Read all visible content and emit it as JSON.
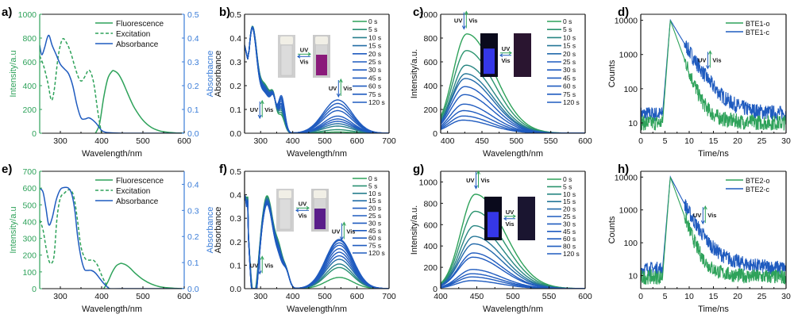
{
  "colors": {
    "green": "#2ea25a",
    "blue": "#1f5bbf",
    "axis_green": "#2ea25a",
    "axis_blue": "#3b7dd8",
    "black": "#111111"
  },
  "chart_data": [
    {
      "id": "a",
      "panel_label": "a)",
      "type": "line",
      "dual_axis": true,
      "xlabel": "Wavelength/nm",
      "ylabel": "Intensity/a.u",
      "y2label": "Absorbacne",
      "xlim": [
        250,
        600
      ],
      "ylim": [
        0,
        1000
      ],
      "y2lim": [
        0,
        0.5
      ],
      "xticks": [
        300,
        400,
        500,
        600
      ],
      "yticks": [
        0,
        200,
        400,
        600,
        800,
        1000
      ],
      "y2ticks": [
        0.0,
        0.1,
        0.2,
        0.3,
        0.4,
        0.5
      ],
      "y2tick_labels": [
        "0.0",
        "0.1",
        "0.2",
        "0.3",
        "0.4",
        "0.5"
      ],
      "legend": [
        "Fluorescence",
        "Excitation",
        "Absorbance"
      ],
      "series": [
        {
          "name": "Fluorescence",
          "axis": "left",
          "style": "solid",
          "color": "green",
          "x": [
            385,
            395,
            405,
            415,
            425,
            430,
            440,
            450,
            460,
            470,
            480,
            500,
            520,
            540,
            560,
            580,
            600
          ],
          "y": [
            0,
            80,
            300,
            460,
            520,
            525,
            500,
            440,
            360,
            280,
            210,
            110,
            50,
            20,
            8,
            3,
            1
          ]
        },
        {
          "name": "Excitation",
          "axis": "left",
          "style": "dashed",
          "color": "green",
          "x": [
            250,
            260,
            270,
            278,
            285,
            295,
            305,
            315,
            325,
            335,
            345,
            352,
            360,
            368,
            375,
            382,
            390,
            397,
            400
          ],
          "y": [
            650,
            560,
            420,
            280,
            360,
            650,
            790,
            760,
            680,
            560,
            460,
            440,
            480,
            530,
            500,
            400,
            200,
            50,
            0
          ]
        },
        {
          "name": "Absorbance",
          "axis": "right",
          "style": "solid",
          "color": "blue",
          "x": [
            250,
            255,
            262,
            268,
            273,
            280,
            290,
            300,
            310,
            320,
            330,
            340,
            350,
            360,
            368,
            375,
            385,
            392,
            400,
            410,
            420,
            450,
            500,
            600
          ],
          "y": [
            0.37,
            0.33,
            0.36,
            0.4,
            0.41,
            0.37,
            0.33,
            0.29,
            0.27,
            0.25,
            0.2,
            0.12,
            0.065,
            0.06,
            0.065,
            0.06,
            0.045,
            0.03,
            0.012,
            0.004,
            0.002,
            0.0,
            0.0,
            0.0
          ]
        }
      ]
    },
    {
      "id": "b",
      "panel_label": "b)",
      "type": "line",
      "xlabel": "Wavelength/nm",
      "ylabel": "Absorbance",
      "xlim": [
        250,
        700
      ],
      "ylim": [
        0,
        0.5
      ],
      "xticks": [
        300,
        400,
        500,
        600,
        700
      ],
      "yticks": [
        0.0,
        0.1,
        0.2,
        0.3,
        0.4,
        0.5
      ],
      "ytick_labels": [
        "0.0",
        "0.1",
        "0.2",
        "0.3",
        "0.4",
        "0.5"
      ],
      "series_kind": "time_absorbance_uv",
      "legend": [
        "0 s",
        "5 s",
        "10 s",
        "15 s",
        "20 s",
        "25 s",
        "30 s",
        "45 s",
        "60 s",
        "75 s",
        "120 s"
      ],
      "visible_band_peak_nm": 540,
      "visible_band_peaks": [
        0.005,
        0.015,
        0.03,
        0.04,
        0.05,
        0.06,
        0.072,
        0.095,
        0.11,
        0.125,
        0.14
      ],
      "uv_peak_365": [
        0.065,
        0.075,
        0.085,
        0.093,
        0.1,
        0.108,
        0.115,
        0.125,
        0.133,
        0.14,
        0.148
      ],
      "uv_shoulder_310": [
        0.28,
        0.275,
        0.27,
        0.265,
        0.26,
        0.255,
        0.25,
        0.245,
        0.24,
        0.235,
        0.23
      ],
      "uv_peak_273": [
        0.405,
        0.405,
        0.405,
        0.405,
        0.405,
        0.405,
        0.405,
        0.405,
        0.405,
        0.405,
        0.405
      ],
      "annotations": [
        {
          "text_left": "UV",
          "text_right": "Vis",
          "at_x": 300,
          "at_y": 0.1
        },
        {
          "text_left": "UV",
          "text_right": "Vis",
          "at_x": 545,
          "at_y": 0.19
        }
      ],
      "inset": {
        "left_vial": "colorless",
        "right_vial": "purple",
        "arrow_top": "UV",
        "arrow_bottom": "Vis",
        "right_color": "#8a1a7a"
      }
    },
    {
      "id": "c",
      "panel_label": "c)",
      "type": "line",
      "xlabel": "Wavelength/nm",
      "ylabel": "Intensity/a.u.",
      "xlim": [
        390,
        600
      ],
      "ylim": [
        0,
        1000
      ],
      "xticks": [
        400,
        450,
        500,
        550,
        600
      ],
      "yticks": [
        0,
        200,
        400,
        600,
        800,
        1000
      ],
      "series_kind": "time_emission",
      "emission_peak_nm": 428,
      "legend": [
        "0 s",
        "5 s",
        "10 s",
        "15 s",
        "20 s",
        "25 s",
        "30 s",
        "45 s",
        "60 s",
        "75 s",
        "120 s"
      ],
      "peaks": [
        835,
        695,
        572,
        500,
        460,
        392,
        325,
        245,
        190,
        145,
        110
      ],
      "annotations": [
        {
          "text_left": "UV",
          "text_right": "Vis",
          "at_x": 425,
          "at_y": 950
        }
      ],
      "inset": {
        "left_vial": "blue emission",
        "right_vial": "dark",
        "arrow_top": "UV",
        "arrow_bottom": "Vis",
        "left_color": "#3a3cff",
        "right_color": "#2a1530"
      }
    },
    {
      "id": "d",
      "panel_label": "d)",
      "type": "line",
      "log_y": true,
      "xlabel": "Time/ns",
      "ylabel": "Counts",
      "xlim": [
        0,
        30
      ],
      "ylim": [
        5,
        15000
      ],
      "xticks": [
        0,
        5,
        10,
        15,
        20,
        25,
        30
      ],
      "yticks": [
        10,
        100,
        1000,
        10000
      ],
      "legend": [
        "BTE1-o",
        "BTE1-c"
      ],
      "series": [
        {
          "name": "BTE1-o",
          "color": "green",
          "baseline": 10,
          "peak_t": 6.1,
          "peak": 10000,
          "tail_end": 10,
          "decay_ns": 1.1
        },
        {
          "name": "BTE1-c",
          "color": "blue",
          "baseline": 18,
          "peak_t": 6.1,
          "peak": 10000,
          "tail_end": 18,
          "decay_ns": 1.8
        }
      ],
      "annotations": [
        {
          "text_left": "UV",
          "text_right": "Vis",
          "at_x": 14,
          "at_y": 700
        }
      ]
    },
    {
      "id": "e",
      "panel_label": "e)",
      "type": "line",
      "dual_axis": true,
      "xlabel": "Wavelength/nm",
      "ylabel": "Intensity/a.u",
      "y2label": "Absorbance",
      "xlim": [
        250,
        600
      ],
      "ylim": [
        0,
        700
      ],
      "y2lim": [
        0,
        0.45
      ],
      "xticks": [
        300,
        400,
        500,
        600
      ],
      "yticks": [
        0,
        100,
        200,
        300,
        400,
        500,
        600,
        700
      ],
      "y2ticks": [
        0.0,
        0.1,
        0.2,
        0.3,
        0.4
      ],
      "y2tick_labels": [
        "0.0",
        "0.1",
        "0.2",
        "0.3",
        "0.4"
      ],
      "legend": [
        "Fluorescence",
        "Excitation",
        "Absorbance"
      ],
      "series": [
        {
          "name": "Fluorescence",
          "axis": "left",
          "style": "solid",
          "color": "green",
          "x": [
            405,
            415,
            425,
            435,
            445,
            450,
            460,
            470,
            480,
            500,
            520,
            540,
            560,
            580,
            600
          ],
          "y": [
            0,
            40,
            95,
            135,
            150,
            150,
            140,
            120,
            95,
            55,
            28,
            12,
            5,
            2,
            0
          ]
        },
        {
          "name": "Excitation",
          "axis": "left",
          "style": "dashed",
          "color": "green",
          "x": [
            250,
            258,
            265,
            272,
            278,
            285,
            292,
            300,
            310,
            320,
            328,
            335,
            342,
            350,
            360,
            370,
            380,
            390,
            400,
            410,
            418
          ],
          "y": [
            410,
            350,
            250,
            170,
            150,
            200,
            420,
            540,
            570,
            590,
            580,
            520,
            400,
            250,
            180,
            170,
            170,
            140,
            80,
            30,
            0
          ]
        },
        {
          "name": "Absorbance",
          "axis": "right",
          "style": "solid",
          "color": "blue",
          "x": [
            250,
            258,
            265,
            272,
            280,
            290,
            300,
            310,
            320,
            328,
            335,
            342,
            350,
            358,
            365,
            375,
            385,
            395,
            405,
            415,
            420,
            450,
            600
          ],
          "y": [
            0.385,
            0.37,
            0.31,
            0.245,
            0.27,
            0.34,
            0.38,
            0.388,
            0.385,
            0.36,
            0.3,
            0.2,
            0.12,
            0.075,
            0.07,
            0.07,
            0.06,
            0.04,
            0.02,
            0.005,
            0.0,
            0.0,
            0.0
          ]
        }
      ]
    },
    {
      "id": "f",
      "panel_label": "f)",
      "type": "line",
      "xlabel": "Wavelength/nm",
      "ylabel": "Absorbance",
      "xlim": [
        250,
        700
      ],
      "ylim": [
        0,
        0.5
      ],
      "xticks": [
        300,
        400,
        500,
        600,
        700
      ],
      "yticks": [
        0.0,
        0.1,
        0.2,
        0.3,
        0.4,
        0.5
      ],
      "ytick_labels": [
        "0.0",
        "0.1",
        "0.2",
        "0.3",
        "0.4",
        "0.5"
      ],
      "series_kind": "time_absorbance_f",
      "legend": [
        "0 s",
        "5 s",
        "10 s",
        "15 s",
        "20 s",
        "25 s",
        "30 s",
        "45 s",
        "60 s",
        "75 s",
        "120 s"
      ],
      "visible_band_peak_nm": 545,
      "visible_band_peaks": [
        0.048,
        0.09,
        0.105,
        0.125,
        0.14,
        0.155,
        0.17,
        0.185,
        0.195,
        0.205,
        0.21
      ],
      "uv_peak_320": [
        0.395,
        0.39,
        0.385,
        0.38,
        0.375,
        0.37,
        0.368,
        0.365,
        0.362,
        0.36,
        0.358
      ],
      "uv_min_280": [
        0.24,
        0.22,
        0.21,
        0.2,
        0.19,
        0.18,
        0.17,
        0.165,
        0.16,
        0.155,
        0.15
      ],
      "annotations": [
        {
          "text_left": "UV",
          "text_right": "Vis",
          "at_x": 300,
          "at_y": 0.1
        },
        {
          "text_left": "UV",
          "text_right": "Vis",
          "at_x": 555,
          "at_y": 0.245
        }
      ],
      "inset": {
        "left_vial": "colorless",
        "right_vial": "purple",
        "arrow_top": "UV",
        "arrow_bottom": "Vis",
        "right_color": "#5a1e8a"
      }
    },
    {
      "id": "g",
      "panel_label": "g)",
      "type": "line",
      "xlabel": "Wavelength/nm",
      "ylabel": "Intensity/a.u.",
      "xlim": [
        400,
        600
      ],
      "ylim": [
        0,
        1100
      ],
      "xticks": [
        400,
        450,
        500,
        550,
        600
      ],
      "yticks": [
        0,
        200,
        400,
        600,
        800,
        1000
      ],
      "series_kind": "time_emission",
      "emission_peak_nm": 448,
      "legend": [
        "0 s",
        "5 s",
        "10 s",
        "15 s",
        "20 s",
        "25 s",
        "30 s",
        "45 s",
        "60 s",
        "80 s",
        "120 s"
      ],
      "peaks": [
        885,
        725,
        590,
        490,
        420,
        335,
        295,
        180,
        140,
        110,
        75
      ],
      "annotations": [
        {
          "text_left": "UV",
          "text_right": "Vis",
          "at_x": 450,
          "at_y": 1020
        }
      ],
      "inset": {
        "left_vial": "blue emission",
        "right_vial": "dark",
        "arrow_top": "UV",
        "arrow_bottom": "Vis",
        "left_color": "#3a3cff",
        "right_color": "#1a1530"
      }
    },
    {
      "id": "h",
      "panel_label": "h)",
      "type": "line",
      "log_y": true,
      "xlabel": "Time/ns",
      "ylabel": "Counts",
      "xlim": [
        0,
        30
      ],
      "ylim": [
        4,
        15000
      ],
      "xticks": [
        0,
        5,
        10,
        15,
        20,
        25,
        30
      ],
      "yticks": [
        10,
        100,
        1000,
        10000
      ],
      "legend": [
        "BTE2-o",
        "BTE2-c"
      ],
      "series": [
        {
          "name": "BTE2-o",
          "color": "green",
          "baseline": 9,
          "peak_t": 6.1,
          "peak": 10000,
          "tail_end": 9,
          "decay_ns": 1.05
        },
        {
          "name": "BTE2-c",
          "color": "blue",
          "baseline": 16,
          "peak_t": 6.1,
          "peak": 10000,
          "tail_end": 16,
          "decay_ns": 1.5
        }
      ],
      "annotations": [
        {
          "text_left": "UV",
          "text_right": "Vis",
          "at_x": 13,
          "at_y": 700
        }
      ]
    }
  ]
}
